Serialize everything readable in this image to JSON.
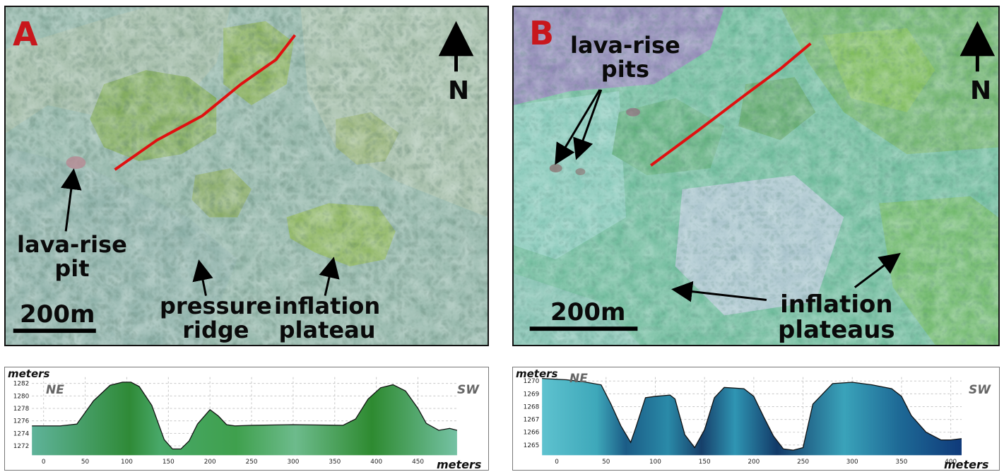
{
  "panel_a": {
    "letter": "A",
    "north": "N",
    "scale": "200m",
    "label_pit_1": "lava-rise",
    "label_pit_2": "pit",
    "label_ridge_1": "pressure",
    "label_ridge_2": "ridge",
    "label_plateau_1": "inflation",
    "label_plateau_2": "plateau"
  },
  "panel_b": {
    "letter": "B",
    "north": "N",
    "scale": "200m",
    "label_pits_1": "lava-rise",
    "label_pits_2": "pits",
    "label_plateaus_1": "inflation",
    "label_plateaus_2": "plateaus"
  },
  "colors": {
    "profile_line": "#e01010",
    "letter": "#c8171c",
    "profile_a_fill": "#3c9a4a",
    "profile_b_fill": "#2a7fa5"
  },
  "chart_data": [
    {
      "type": "area",
      "y_unit_label": "meters",
      "x_unit_label": "meters",
      "left_label": "NE",
      "right_label": "SW",
      "x_ticks": [
        0,
        50,
        100,
        150,
        200,
        250,
        300,
        350,
        400,
        450
      ],
      "y_ticks": [
        1272,
        1274,
        1276,
        1278,
        1280,
        1282
      ],
      "xlim": [
        -14,
        497
      ],
      "ylim": [
        1270.5,
        1283
      ],
      "grid": true,
      "x": [
        -14,
        5,
        20,
        40,
        60,
        80,
        95,
        105,
        115,
        130,
        145,
        155,
        165,
        175,
        185,
        200,
        210,
        220,
        230,
        250,
        300,
        360,
        375,
        390,
        405,
        420,
        435,
        450,
        460,
        475,
        488,
        497
      ],
      "y": [
        1275.2,
        1275.2,
        1275.2,
        1275.5,
        1279.2,
        1281.7,
        1282.2,
        1282.2,
        1281.5,
        1278.5,
        1273,
        1271.5,
        1271.5,
        1272.8,
        1275.5,
        1277.8,
        1276.8,
        1275.4,
        1275.2,
        1275.3,
        1275.4,
        1275.3,
        1276.3,
        1279.5,
        1281.3,
        1281.8,
        1280.8,
        1278,
        1275.6,
        1274.5,
        1274.8,
        1274.5
      ]
    },
    {
      "type": "area",
      "y_unit_label": "meters",
      "x_unit_label": "meters",
      "left_label": "NE",
      "right_label": "SW",
      "x_ticks": [
        0,
        50,
        100,
        150,
        200,
        250,
        300,
        350,
        400
      ],
      "y_ticks": [
        1265,
        1266,
        1267,
        1268,
        1269,
        1270
      ],
      "xlim": [
        -15,
        411
      ],
      "ylim": [
        1264.2,
        1270.3
      ],
      "grid": true,
      "x": [
        -15,
        10,
        30,
        45,
        55,
        65,
        75,
        80,
        90,
        100,
        115,
        120,
        130,
        140,
        150,
        160,
        170,
        190,
        200,
        210,
        220,
        230,
        240,
        250,
        260,
        280,
        300,
        320,
        340,
        350,
        360,
        375,
        390,
        400,
        411
      ],
      "y": [
        1270.2,
        1270.1,
        1269.9,
        1269.7,
        1268.2,
        1266.5,
        1265.2,
        1266.3,
        1268.7,
        1268.8,
        1268.9,
        1268.6,
        1265.8,
        1264.8,
        1266.2,
        1268.7,
        1269.5,
        1269.4,
        1268.8,
        1267.2,
        1265.7,
        1264.7,
        1264.6,
        1264.8,
        1268.2,
        1269.8,
        1269.9,
        1269.7,
        1269.4,
        1268.8,
        1267.3,
        1266.0,
        1265.4,
        1265.4,
        1265.5
      ]
    }
  ]
}
